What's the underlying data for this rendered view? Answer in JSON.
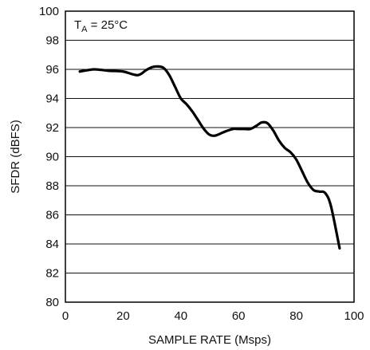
{
  "chart_data": {
    "type": "line",
    "title": "",
    "xlabel": "SAMPLE RATE (Msps)",
    "ylabel": "SFDR (dBFS)",
    "xlim": [
      0,
      100
    ],
    "ylim": [
      80,
      100
    ],
    "x_ticks": [
      "0",
      "20",
      "40",
      "60",
      "80",
      "100"
    ],
    "y_ticks": [
      "80",
      "82",
      "84",
      "86",
      "88",
      "90",
      "92",
      "94",
      "96",
      "98",
      "100"
    ],
    "grid": "horizontal",
    "annotation": {
      "main": "T",
      "subscript": "A",
      "suffix": " = 25°C"
    },
    "series": [
      {
        "x": [
          5,
          10,
          15,
          20,
          25,
          28,
          30,
          32,
          34,
          36,
          38,
          40,
          42,
          44,
          46,
          48,
          50,
          52,
          55,
          58,
          60,
          62,
          64,
          66,
          68,
          70,
          72,
          74,
          76,
          78,
          80,
          82,
          84,
          86,
          88,
          90,
          92,
          95
        ],
        "y": [
          95.85,
          96.0,
          95.9,
          95.85,
          95.6,
          95.95,
          96.15,
          96.2,
          96.1,
          95.6,
          94.8,
          94.0,
          93.6,
          93.1,
          92.5,
          91.9,
          91.5,
          91.45,
          91.7,
          91.9,
          91.9,
          91.9,
          91.9,
          92.1,
          92.35,
          92.3,
          91.8,
          91.1,
          90.6,
          90.3,
          89.8,
          89.0,
          88.2,
          87.7,
          87.6,
          87.5,
          86.6,
          83.7
        ],
        "color": "#000000"
      }
    ]
  }
}
